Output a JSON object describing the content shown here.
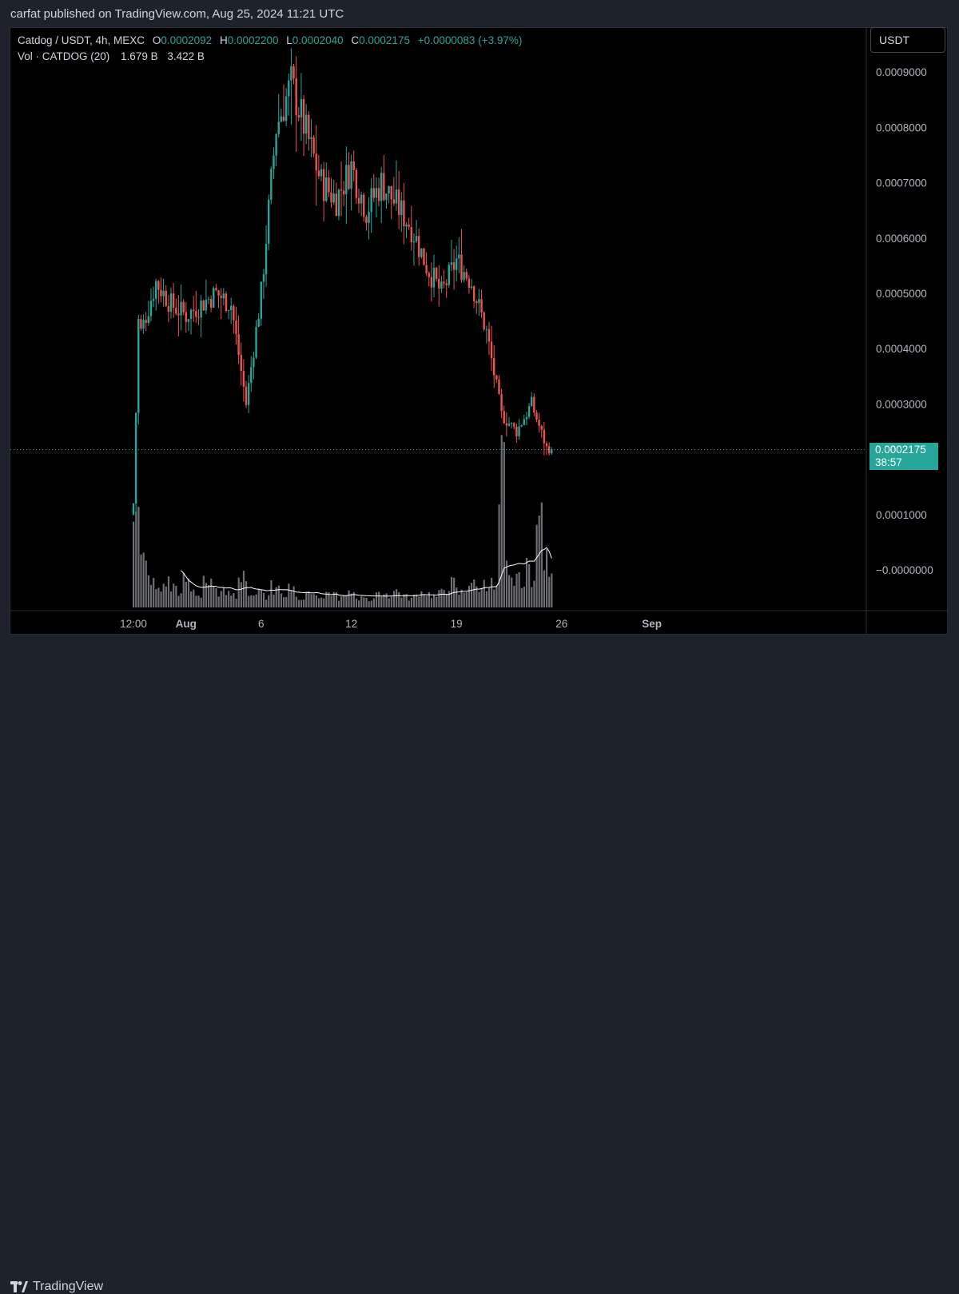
{
  "header": {
    "publish_line": "carfat published on TradingView.com, Aug 25, 2024 11:21 UTC"
  },
  "legend": {
    "symbol": "Catdog / USDT, 4h, MEXC",
    "open_label": "O",
    "open": "0.0002092",
    "high_label": "H",
    "high": "0.0002200",
    "low_label": "L",
    "low": "0.0002040",
    "close_label": "C",
    "close": "0.0002175",
    "change": "+0.0000083 (+3.97%)",
    "volume_label": "Vol · CATDOG (20)",
    "volume_value": "1.679 B",
    "volume_ma": "3.422 B"
  },
  "price_axis": {
    "currency": "USDT",
    "tick_labels": [
      "0.0009000",
      "0.0008000",
      "0.0007000",
      "0.0006000",
      "0.0005000",
      "0.0004000",
      "0.0003000",
      "0.0001000",
      "−0.0000000"
    ],
    "current_price": "0.0002175",
    "countdown": "38:57"
  },
  "brand": {
    "name": "TradingView"
  },
  "colors": {
    "up": "#26a69a",
    "down": "#ef5350",
    "volume": "#6d6f74",
    "volume_ma": "#ffffff",
    "background": "#000000"
  },
  "chart_data": {
    "type": "candlestick",
    "interval": "4h",
    "x_tick_labels": [
      "12:00",
      "Aug",
      "6",
      "12",
      "19",
      "26",
      "Sep"
    ],
    "x_ticks": [
      {
        "label": "12:00",
        "date": "2024-07-28"
      },
      {
        "label": "Aug",
        "date": "2024-08-01"
      },
      {
        "label": "6",
        "date": "2024-08-06"
      },
      {
        "label": "12",
        "date": "2024-08-12"
      },
      {
        "label": "19",
        "date": "2024-08-19"
      },
      {
        "label": "26",
        "date": "2024-08-26"
      },
      {
        "label": "Sep",
        "date": "2024-09-01"
      }
    ],
    "ylim": [
      -1e-05,
      0.00092
    ],
    "last_price": 0.0002175,
    "trend": [
      {
        "date": "2024-07-28",
        "price": 0.00012
      },
      {
        "date": "2024-07-28",
        "price": 0.00045
      },
      {
        "date": "2024-07-29",
        "price": 0.00043
      },
      {
        "date": "2024-07-30",
        "price": 0.00052
      },
      {
        "date": "2024-07-31",
        "price": 0.00048
      },
      {
        "date": "2024-08-01",
        "price": 0.00046
      },
      {
        "date": "2024-08-03",
        "price": 0.0005
      },
      {
        "date": "2024-08-04",
        "price": 0.00048
      },
      {
        "date": "2024-08-05",
        "price": 0.0003
      },
      {
        "date": "2024-08-06",
        "price": 0.0005
      },
      {
        "date": "2024-08-07",
        "price": 0.0008
      },
      {
        "date": "2024-08-08",
        "price": 0.00088
      },
      {
        "date": "2024-08-09",
        "price": 0.00079
      },
      {
        "date": "2024-08-10",
        "price": 0.0007
      },
      {
        "date": "2024-08-11",
        "price": 0.00067
      },
      {
        "date": "2024-08-12",
        "price": 0.00073
      },
      {
        "date": "2024-08-13",
        "price": 0.00065
      },
      {
        "date": "2024-08-14",
        "price": 0.0007
      },
      {
        "date": "2024-08-15",
        "price": 0.00066
      },
      {
        "date": "2024-08-16",
        "price": 0.00062
      },
      {
        "date": "2024-08-17",
        "price": 0.00055
      },
      {
        "date": "2024-08-18",
        "price": 0.0005
      },
      {
        "date": "2024-08-19",
        "price": 0.00056
      },
      {
        "date": "2024-08-20",
        "price": 0.00052
      },
      {
        "date": "2024-08-21",
        "price": 0.00043
      },
      {
        "date": "2024-08-22",
        "price": 0.00028
      },
      {
        "date": "2024-08-23",
        "price": 0.00025
      },
      {
        "date": "2024-08-24",
        "price": 0.0003
      },
      {
        "date": "2024-08-25",
        "price": 0.00022
      }
    ],
    "volume": {
      "ma_period": 20,
      "relative_bars_to_aug_25": [
        0.72,
        0.61,
        0.31,
        0.27,
        0.19,
        0.16,
        0.12,
        0.11,
        0.15,
        0.17,
        0.12,
        0.14,
        0.1,
        0.08,
        0.18,
        0.16,
        0.11,
        0.09,
        0.08,
        0.21,
        0.17,
        0.15,
        0.12,
        0.1,
        0.09,
        0.1,
        0.14,
        0.11,
        0.08,
        0.2,
        0.19,
        0.15,
        0.1,
        0.09,
        0.08,
        0.12,
        0.11,
        0.07,
        0.18,
        0.1,
        0.13,
        0.09,
        0.08,
        0.17,
        0.13,
        0.09,
        0.07,
        0.06,
        0.08,
        0.11,
        0.09,
        0.07,
        0.05,
        0.06,
        0.08,
        0.1,
        0.09,
        0.06,
        0.06,
        0.07,
        0.09,
        0.1,
        0.07,
        0.06,
        0.08,
        0.07,
        0.05,
        0.06,
        0.08,
        0.1,
        0.09,
        0.07,
        0.09,
        0.11,
        0.1,
        0.08,
        0.07,
        0.06,
        0.07,
        0.08,
        0.1,
        0.11,
        0.09,
        0.08,
        0.07,
        0.09,
        0.1,
        0.12,
        0.14,
        0.16,
        0.11,
        0.09,
        0.1,
        0.12,
        0.17,
        0.15,
        0.13,
        0.11,
        0.2,
        0.15,
        0.16,
        0.12,
        0.65,
        0.9,
        0.25,
        0.18,
        0.17,
        0.22,
        0.18,
        0.14,
        0.26,
        0.18,
        0.25,
        0.52,
        0.64,
        0.3,
        0.24,
        0.18
      ]
    }
  }
}
